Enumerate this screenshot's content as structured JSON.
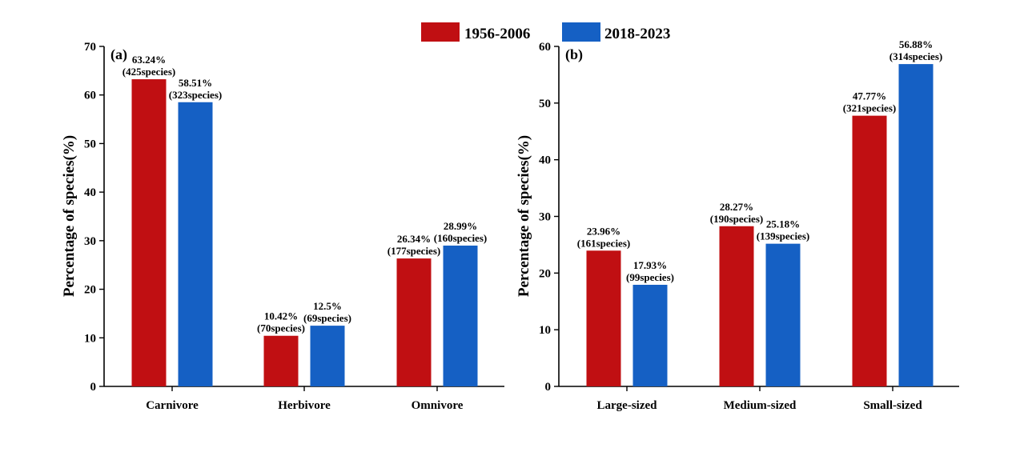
{
  "legend": {
    "items": [
      {
        "label": "1956-2006",
        "color": "#C00F12"
      },
      {
        "label": "2018-2023",
        "color": "#1560C4"
      }
    ]
  },
  "chart_data": [
    {
      "type": "bar",
      "panel_label": "(a)",
      "ylabel": "Percentage of species(%)",
      "ylim": [
        0,
        70
      ],
      "yticks": [
        0,
        10,
        20,
        30,
        40,
        50,
        60,
        70
      ],
      "categories": [
        "Carnivore",
        "Herbivore",
        "Omnivore"
      ],
      "series": [
        {
          "name": "1956-2006",
          "color": "#C00F12",
          "values": [
            63.24,
            10.42,
            26.34
          ],
          "labels": [
            [
              "63.24%",
              "(425species)"
            ],
            [
              "10.42%",
              "(70species)"
            ],
            [
              "26.34%",
              "(177species)"
            ]
          ]
        },
        {
          "name": "2018-2023",
          "color": "#1560C4",
          "values": [
            58.51,
            12.5,
            28.99
          ],
          "labels": [
            [
              "58.51%",
              "(323species)"
            ],
            [
              "12.5%",
              "(69species)"
            ],
            [
              "28.99%",
              "(160species)"
            ]
          ]
        }
      ]
    },
    {
      "type": "bar",
      "panel_label": "(b)",
      "ylabel": "Percentage of species(%)",
      "ylim": [
        0,
        60
      ],
      "yticks": [
        0,
        10,
        20,
        30,
        40,
        50,
        60
      ],
      "categories": [
        "Large-sized",
        "Medium-sized",
        "Small-sized"
      ],
      "series": [
        {
          "name": "1956-2006",
          "color": "#C00F12",
          "values": [
            23.96,
            28.27,
            47.77
          ],
          "labels": [
            [
              "23.96%",
              "(161species)"
            ],
            [
              "28.27%",
              "(190species)"
            ],
            [
              "47.77%",
              "(321species)"
            ]
          ]
        },
        {
          "name": "2018-2023",
          "color": "#1560C4",
          "values": [
            17.93,
            25.18,
            56.88
          ],
          "labels": [
            [
              "17.93%",
              "(99species)"
            ],
            [
              "25.18%",
              "(139species)"
            ],
            [
              "56.88%",
              "(314species)"
            ]
          ]
        }
      ]
    }
  ]
}
